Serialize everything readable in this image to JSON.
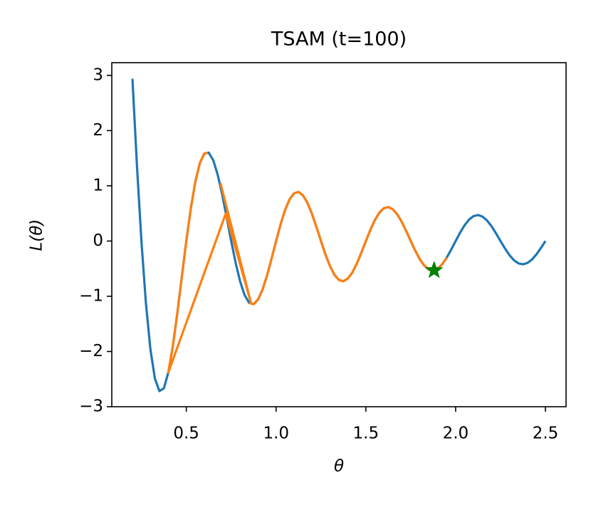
{
  "chart_data": {
    "type": "line",
    "title": "TSAM (t=100)",
    "xlabel": "θ",
    "ylabel": "L(θ)",
    "xlim": [
      0.085,
      2.615
    ],
    "ylim": [
      -3.0,
      3.23
    ],
    "xticks": [
      0.5,
      {
        "value": 1.0,
        "label": "1.0"
      },
      1.5,
      {
        "value": 2.0,
        "label": "2.0"
      },
      2.5
    ],
    "yticks": [
      {
        "value": -3,
        "label": "−3"
      },
      {
        "value": -2,
        "label": "−2"
      },
      {
        "value": -1,
        "label": "−1"
      },
      0,
      1,
      2,
      3
    ],
    "x": [
      0.2,
      0.225,
      0.25,
      0.275,
      0.3,
      0.325,
      0.35,
      0.375,
      0.4,
      0.425,
      0.45,
      0.475,
      0.5,
      0.525,
      0.55,
      0.575,
      0.6,
      0.625,
      0.65,
      0.675,
      0.7,
      0.725,
      0.75,
      0.775,
      0.8,
      0.825,
      0.85,
      0.875,
      0.9,
      0.925,
      0.95,
      0.975,
      1.0,
      1.025,
      1.05,
      1.075,
      1.1,
      1.125,
      1.15,
      1.175,
      1.2,
      1.225,
      1.25,
      1.275,
      1.3,
      1.325,
      1.35,
      1.375,
      1.4,
      1.425,
      1.45,
      1.475,
      1.5,
      1.525,
      1.55,
      1.575,
      1.6,
      1.625,
      1.65,
      1.675,
      1.7,
      1.725,
      1.75,
      1.775,
      1.8,
      1.825,
      1.85,
      1.875,
      1.9,
      1.925,
      1.95,
      1.975,
      2.0,
      2.025,
      2.05,
      2.075,
      2.1,
      2.125,
      2.15,
      2.175,
      2.2,
      2.225,
      2.25,
      2.275,
      2.3,
      2.325,
      2.35,
      2.375,
      2.4,
      2.425,
      2.45,
      2.475,
      2.5
    ],
    "series": [
      {
        "color": "#1f77b4",
        "values": [
          2.939,
          1.373,
          0,
          -1.124,
          -1.959,
          -2.489,
          -2.717,
          -2.667,
          -2.378,
          -1.904,
          -1.306,
          -0.651,
          0,
          0.589,
          1.069,
          1.407,
          1.585,
          1.6,
          1.463,
          1.199,
          0.84,
          0.426,
          0,
          -0.399,
          -0.735,
          -0.981,
          -1.119,
          -1.143,
          -1.057,
          -0.875,
          -0.619,
          -0.317,
          0,
          0.301,
          0.56,
          0.753,
          0.865,
          0.889,
          0.827,
          0.689,
          0.49,
          0.252,
          0,
          -0.242,
          -0.452,
          -0.611,
          -0.705,
          -0.727,
          -0.679,
          -0.568,
          -0.405,
          -0.209,
          0,
          0.203,
          0.379,
          0.514,
          0.594,
          0.615,
          0.576,
          0.483,
          0.346,
          0.179,
          0,
          -0.174,
          -0.327,
          -0.443,
          -0.514,
          -0.533,
          -0.501,
          -0.42,
          -0.301,
          -0.156,
          0,
          0.153,
          0.287,
          0.39,
          0.453,
          0.471,
          0.442,
          0.372,
          0.267,
          0.139,
          0,
          -0.136,
          -0.256,
          -0.348,
          -0.405,
          -0.421,
          -0.396,
          -0.334,
          -0.24,
          -0.125,
          0
        ]
      },
      {
        "color": "#ff7f0e",
        "x": [
          0.69,
          0.86,
          0.72,
          0.4,
          0.425,
          0.45,
          0.475,
          0.5,
          0.525,
          0.55,
          0.575,
          0.6,
          0.62,
          null,
          0.85,
          0.875,
          0.9,
          0.925,
          0.95,
          0.975,
          1.0,
          1.025,
          1.05,
          1.075,
          1.1,
          1.125,
          1.15,
          1.175,
          1.2,
          1.225,
          1.25,
          1.275,
          1.3,
          1.325,
          1.35,
          1.375,
          1.4,
          1.425,
          1.45,
          1.475,
          1.5,
          1.525,
          1.55,
          1.575,
          1.6,
          1.625,
          1.65,
          1.675,
          1.7,
          1.725,
          1.75,
          1.775,
          1.8,
          1.825,
          1.85,
          1.875,
          1.9,
          1.925,
          1.95
        ],
        "values": [
          1.05,
          -1.12,
          0.5,
          -2.378,
          -1.904,
          -1.306,
          -0.651,
          0,
          0.589,
          1.069,
          1.407,
          1.585,
          1.598,
          null,
          -1.119,
          -1.143,
          -1.057,
          -0.875,
          -0.619,
          -0.317,
          0,
          0.301,
          0.56,
          0.753,
          0.865,
          0.889,
          0.827,
          0.689,
          0.49,
          0.252,
          0,
          -0.242,
          -0.452,
          -0.611,
          -0.705,
          -0.727,
          -0.679,
          -0.568,
          -0.405,
          -0.209,
          0,
          0.203,
          0.379,
          0.514,
          0.594,
          0.615,
          0.576,
          0.483,
          0.346,
          0.179,
          0,
          -0.174,
          -0.327,
          -0.443,
          -0.514,
          -0.533,
          -0.501,
          -0.42,
          -0.301
        ]
      }
    ],
    "point": {
      "x": 1.88,
      "y": -0.53,
      "color": "green"
    }
  }
}
